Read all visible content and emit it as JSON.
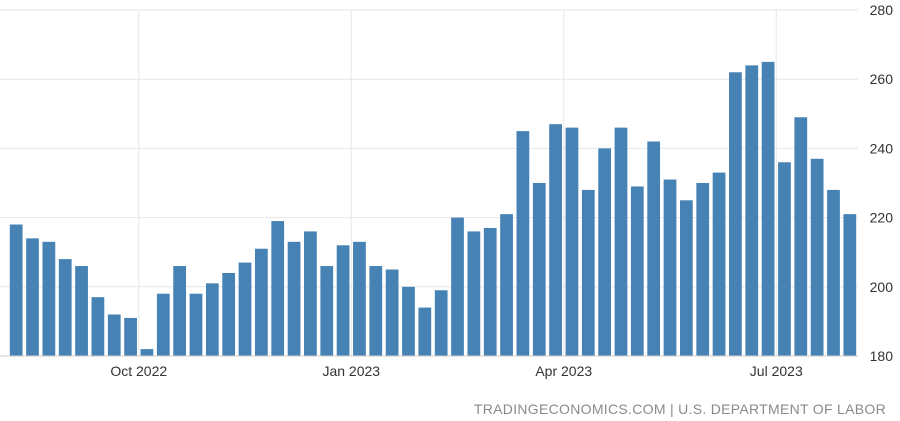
{
  "chart_data": {
    "type": "bar",
    "title": "",
    "xlabel": "",
    "ylabel": "",
    "ylim": [
      180,
      280
    ],
    "yticks": [
      180,
      200,
      220,
      240,
      260,
      280
    ],
    "y_axis_side": "right",
    "grid": true,
    "bar_color": "#4682b4",
    "grid_color": "#e6e6e6",
    "x_tick_labels": [
      {
        "label": "Oct 2022",
        "index": 7.5
      },
      {
        "label": "Jan 2023",
        "index": 20.5
      },
      {
        "label": "Apr 2023",
        "index": 33.5
      },
      {
        "label": "Jul 2023",
        "index": 46.5
      }
    ],
    "values": [
      218,
      214,
      213,
      208,
      206,
      197,
      192,
      191,
      182,
      198,
      206,
      198,
      201,
      204,
      207,
      211,
      219,
      213,
      216,
      206,
      212,
      213,
      206,
      205,
      200,
      194,
      199,
      220,
      216,
      217,
      221,
      245,
      230,
      247,
      246,
      228,
      240,
      246,
      229,
      242,
      231,
      225,
      230,
      233,
      262,
      264,
      265,
      236,
      249,
      237,
      228,
      221
    ]
  },
  "source": "TRADINGECONOMICS.COM | U.S. DEPARTMENT OF LABOR"
}
